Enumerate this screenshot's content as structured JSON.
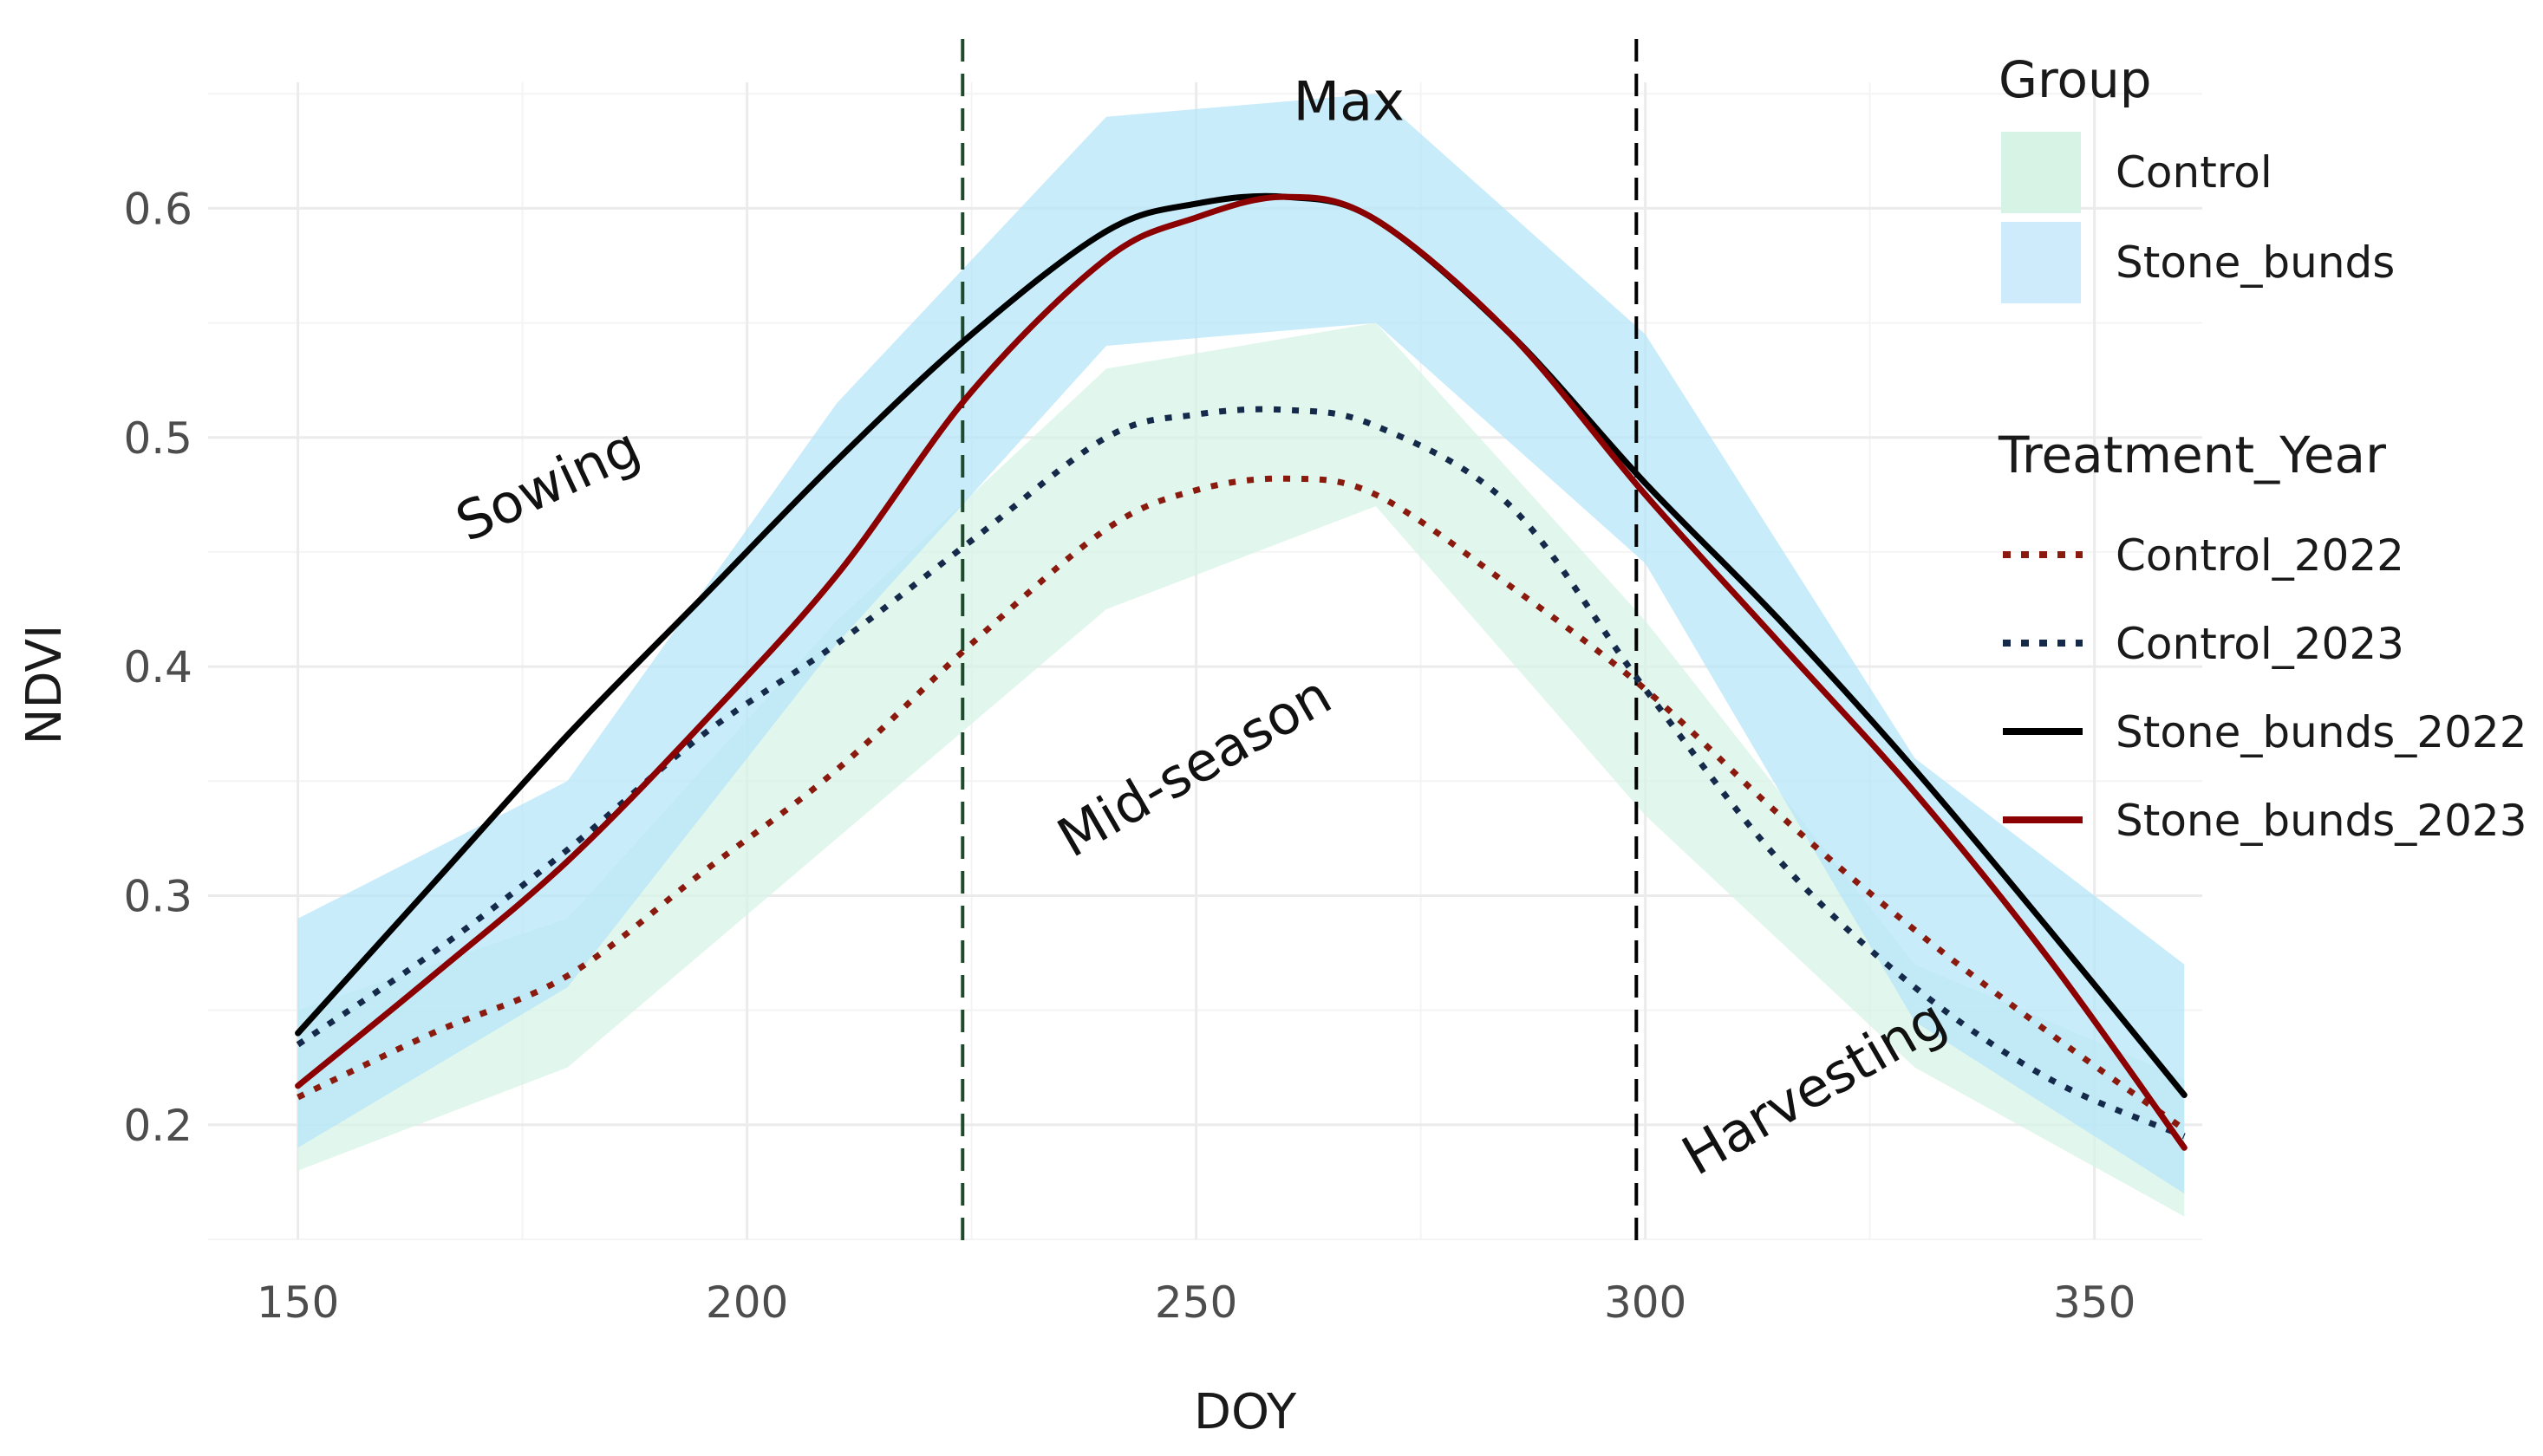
{
  "chart_data": {
    "type": "line",
    "title": "",
    "xlabel": "DOY",
    "ylabel": "NDVI",
    "xlim": [
      140,
      362
    ],
    "ylim": [
      0.15,
      0.655
    ],
    "x_ticks": [
      150,
      200,
      250,
      300,
      350
    ],
    "x_tick_labels": [
      "150",
      "200",
      "250",
      "300",
      "350"
    ],
    "y_ticks": [
      0.2,
      0.3,
      0.4,
      0.5,
      0.6
    ],
    "y_tick_labels": [
      "0.2",
      "0.3",
      "0.4",
      "0.5",
      "0.6"
    ],
    "grid": true,
    "ribbons": [
      {
        "group": "Control",
        "color": "#d6f3e6",
        "x": [
          150,
          180,
          210,
          240,
          270,
          300,
          330,
          360
        ],
        "lower": [
          0.18,
          0.225,
          0.325,
          0.425,
          0.47,
          0.335,
          0.225,
          0.16
        ],
        "upper": [
          0.25,
          0.29,
          0.42,
          0.53,
          0.55,
          0.42,
          0.27,
          0.22
        ]
      },
      {
        "group": "Stone_bunds",
        "color": "#b4e4fa",
        "x": [
          150,
          180,
          210,
          240,
          270,
          300,
          330,
          360
        ],
        "lower": [
          0.19,
          0.26,
          0.41,
          0.54,
          0.55,
          0.445,
          0.245,
          0.17
        ],
        "upper": [
          0.29,
          0.35,
          0.515,
          0.64,
          0.65,
          0.545,
          0.36,
          0.27
        ]
      }
    ],
    "series": [
      {
        "name": "Control_2022",
        "color": "#8b1a0e",
        "style": "dotted",
        "x": [
          150,
          165,
          180,
          195,
          210,
          225,
          240,
          250,
          260,
          270,
          285,
          300,
          315,
          330,
          345,
          360
        ],
        "values": [
          0.212,
          0.24,
          0.265,
          0.31,
          0.355,
          0.41,
          0.46,
          0.477,
          0.482,
          0.475,
          0.435,
          0.39,
          0.335,
          0.285,
          0.24,
          0.198
        ]
      },
      {
        "name": "Control_2023",
        "color": "#152a4a",
        "style": "dotted",
        "x": [
          150,
          165,
          180,
          195,
          210,
          225,
          240,
          250,
          260,
          270,
          285,
          300,
          315,
          330,
          345,
          360
        ],
        "values": [
          0.235,
          0.275,
          0.32,
          0.37,
          0.41,
          0.455,
          0.5,
          0.51,
          0.512,
          0.505,
          0.47,
          0.39,
          0.315,
          0.26,
          0.22,
          0.195
        ]
      },
      {
        "name": "Stone_bunds_2022",
        "color": "#000000",
        "style": "solid",
        "x": [
          150,
          165,
          180,
          195,
          210,
          225,
          240,
          250,
          260,
          270,
          285,
          300,
          315,
          330,
          345,
          360
        ],
        "values": [
          0.24,
          0.305,
          0.37,
          0.43,
          0.49,
          0.545,
          0.59,
          0.602,
          0.605,
          0.595,
          0.545,
          0.48,
          0.42,
          0.355,
          0.285,
          0.213
        ]
      },
      {
        "name": "Stone_bunds_2023",
        "color": "#8b0000",
        "style": "solid",
        "x": [
          150,
          165,
          180,
          195,
          210,
          225,
          240,
          250,
          260,
          270,
          285,
          300,
          315,
          330,
          345,
          360
        ],
        "values": [
          0.217,
          0.265,
          0.315,
          0.375,
          0.44,
          0.52,
          0.578,
          0.596,
          0.605,
          0.595,
          0.545,
          0.475,
          0.41,
          0.345,
          0.272,
          0.19
        ]
      }
    ],
    "vlines": [
      {
        "x": 224,
        "color": "#1e4a2e",
        "style": "dashed"
      },
      {
        "x": 299,
        "color": "#000000",
        "style": "dashed"
      }
    ],
    "annotations": [
      {
        "text": "Sowing",
        "x": 178,
        "y": 0.478,
        "angle": -25
      },
      {
        "text": "Max",
        "x": 267,
        "y": 0.645,
        "angle": 0
      },
      {
        "text": "Mid-season",
        "x": 250,
        "y": 0.355,
        "angle": -30
      },
      {
        "text": "Harvesting",
        "x": 319,
        "y": 0.215,
        "angle": -30
      }
    ],
    "legend": {
      "position": "right",
      "group_title": "Group",
      "group_items": [
        {
          "label": "Control",
          "color": "#d6f3e6"
        },
        {
          "label": "Stone_bunds",
          "color": "#cdebfb"
        }
      ],
      "line_title": "Treatment_Year",
      "line_items": [
        {
          "label": "Control_2022",
          "color": "#8b1a0e",
          "style": "dotted"
        },
        {
          "label": "Control_2023",
          "color": "#152a4a",
          "style": "dotted"
        },
        {
          "label": "Stone_bunds_2022",
          "color": "#000000",
          "style": "solid"
        },
        {
          "label": "Stone_bunds_2023",
          "color": "#8b0000",
          "style": "solid"
        }
      ]
    }
  }
}
